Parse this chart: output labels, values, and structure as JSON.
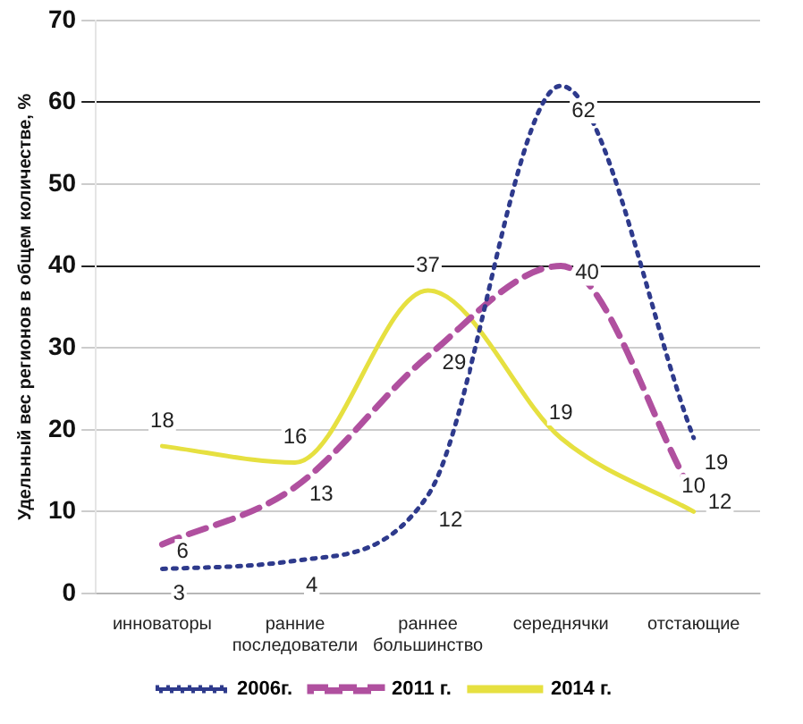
{
  "chart_data": {
    "type": "line",
    "ylabel": "Удельный вес регионов в общем количестве, %",
    "categories": [
      "инноваторы",
      "ранние последователи",
      "раннее большинство",
      "середнячки",
      "отстающие"
    ],
    "series": [
      {
        "name": "2006г.",
        "color": "#2e3a8c",
        "line_style": "dotted",
        "values": [
          3,
          4,
          12,
          62,
          19
        ]
      },
      {
        "name": "2011 г.",
        "color": "#b0509f",
        "line_style": "dashed",
        "values": [
          6,
          13,
          29,
          40,
          12
        ]
      },
      {
        "name": "2014 г.",
        "color": "#e6e040",
        "line_style": "solid",
        "values": [
          18,
          16,
          37,
          19,
          10
        ]
      }
    ],
    "ylim": [
      0,
      70
    ],
    "yticks": [
      0,
      10,
      20,
      30,
      40,
      50,
      60,
      70
    ],
    "grid": "y",
    "legend": "bottom",
    "data_labels": true,
    "marker": "none"
  }
}
